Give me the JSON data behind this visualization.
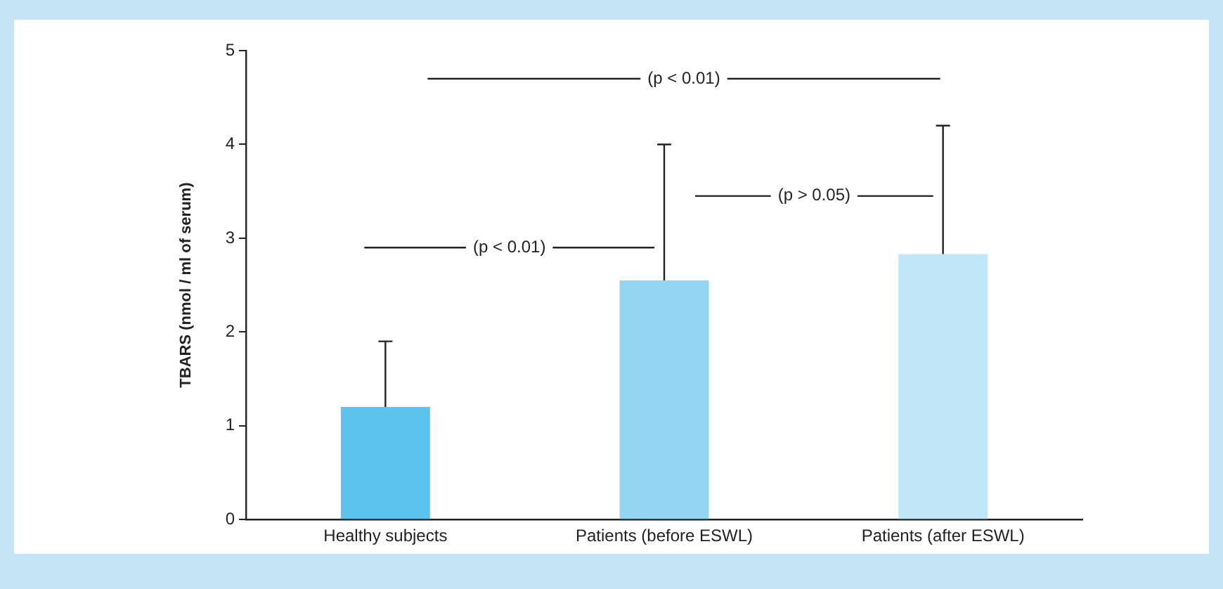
{
  "chart_data": {
    "type": "bar",
    "ylabel": "TBARS (nmol / ml of serum)",
    "categories": [
      "Healthy subjects",
      "Patients (before ESWL)",
      "Patients (after ESWL)"
    ],
    "values": [
      1.2,
      2.55,
      2.83
    ],
    "colors": [
      "#5bc3ee",
      "#93d5f2",
      "#c1e6f8"
    ],
    "errors": [
      [
        1.2,
        1.9
      ],
      [
        2.55,
        4.0
      ],
      [
        2.83,
        4.2
      ]
    ],
    "ylim": [
      0,
      5
    ],
    "yticks": [
      0,
      1,
      2,
      3,
      4,
      5
    ],
    "grid": false,
    "legend": false,
    "annotations": [
      "(p < 0.01)",
      "(p < 0.01)",
      "(p > 0.05)"
    ]
  }
}
